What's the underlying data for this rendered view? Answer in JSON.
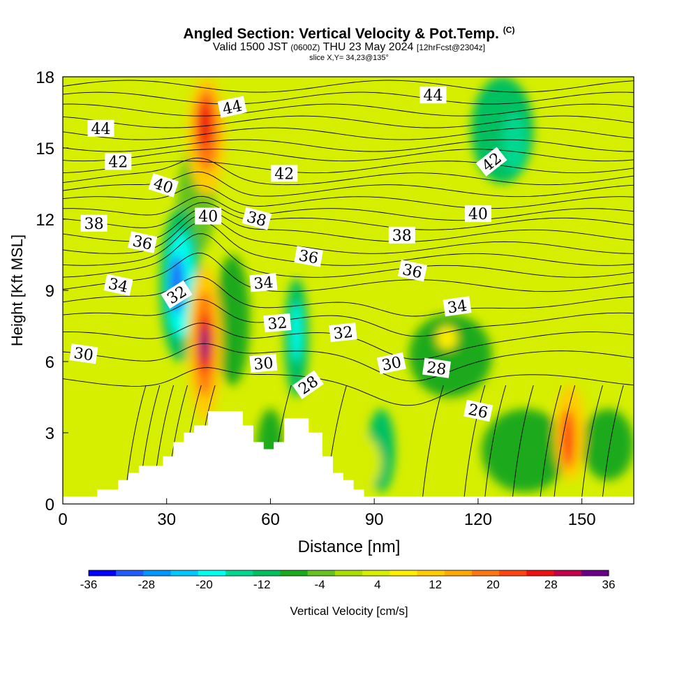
{
  "header": {
    "title": "Angled Section: Vertical Velocity & Pot.Temp.",
    "title_tag": "(C)",
    "subtitle_a": "Valid 1500 JST",
    "subtitle_b": "(0600Z)",
    "subtitle_c": "THU 23 May 2024",
    "subtitle_d": "[12hrFcst@2304z]",
    "slice": "slice X,Y= 34,23@135°"
  },
  "chart_data": {
    "type": "heatmap",
    "xlabel": "Distance [nm]",
    "ylabel": "Height [Kft MSL]",
    "xlim": [
      0,
      165
    ],
    "ylim": [
      0,
      18
    ],
    "x_ticks": [
      "0",
      "30",
      "60",
      "90",
      "120",
      "150"
    ],
    "x_tick_values": [
      0,
      30,
      60,
      90,
      120,
      150
    ],
    "y_ticks": [
      "0",
      "3",
      "6",
      "9",
      "12",
      "15",
      "18"
    ],
    "y_tick_values": [
      0,
      3,
      6,
      9,
      12,
      15,
      18
    ],
    "colorbar": {
      "label": "Vertical Velocity [cm/s]",
      "tick_labels": [
        "-36",
        "-28",
        "-20",
        "-12",
        "-4",
        "4",
        "12",
        "20",
        "28",
        "36"
      ],
      "levels": [
        -36,
        -32,
        -28,
        -24,
        -20,
        -16,
        -12,
        -8,
        -4,
        0,
        4,
        8,
        12,
        16,
        20,
        24,
        28,
        32,
        36
      ],
      "colors": [
        "#0000ff",
        "#1f5cff",
        "#0096ff",
        "#00c8ff",
        "#00ffee",
        "#00d890",
        "#00c060",
        "#1aaa1a",
        "#66c21e",
        "#aadd00",
        "#d6ee00",
        "#ffee00",
        "#ffcc00",
        "#ffaa00",
        "#ff7711",
        "#ff4411",
        "#ee1111",
        "#c4004c",
        "#6b0088"
      ]
    },
    "background_color": "#d6ee00",
    "velocity_cells": [
      {
        "x": [
          33,
          44
        ],
        "y": [
          10.5,
          15
        ],
        "value": -2
      },
      {
        "x": [
          28,
          40
        ],
        "y": [
          6,
          12.5
        ],
        "value": -10
      },
      {
        "x": [
          30,
          38
        ],
        "y": [
          7,
          11.5
        ],
        "value": -20
      },
      {
        "x": [
          31,
          35
        ],
        "y": [
          8,
          10.5
        ],
        "value": -30
      },
      {
        "x": [
          44,
          54
        ],
        "y": [
          5,
          10.5
        ],
        "value": -8
      },
      {
        "x": [
          64,
          71
        ],
        "y": [
          4.5,
          9.5
        ],
        "value": -10
      },
      {
        "x": [
          66,
          69
        ],
        "y": [
          6,
          8.5
        ],
        "value": -18
      },
      {
        "x": [
          118,
          136
        ],
        "y": [
          13.5,
          18
        ],
        "value": -10
      },
      {
        "x": [
          127,
          134
        ],
        "y": [
          14,
          16.5
        ],
        "value": -16
      },
      {
        "x": [
          100,
          124
        ],
        "y": [
          4.5,
          8
        ],
        "value": -6
      },
      {
        "x": [
          88,
          96
        ],
        "y": [
          0.5,
          4
        ],
        "value": -12
      },
      {
        "x": [
          121,
          146
        ],
        "y": [
          0.5,
          4
        ],
        "value": -6
      },
      {
        "x": [
          56,
          64
        ],
        "y": [
          0.5,
          4
        ],
        "value": -6
      },
      {
        "x": [
          150,
          165
        ],
        "y": [
          1,
          4
        ],
        "value": -6
      },
      {
        "x": [
          90,
          165
        ],
        "y": [
          8.5,
          12.5
        ],
        "value": 4
      },
      {
        "x": [
          122,
          165
        ],
        "y": [
          9,
          11.5
        ],
        "value": 6
      },
      {
        "x": [
          78,
          92
        ],
        "y": [
          0.5,
          3
        ],
        "value": 6
      },
      {
        "x": [
          36,
          47
        ],
        "y": [
          13,
          18
        ],
        "value": 12
      },
      {
        "x": [
          38,
          45
        ],
        "y": [
          14,
          17.5
        ],
        "value": 22
      },
      {
        "x": [
          39,
          43
        ],
        "y": [
          15,
          17
        ],
        "value": 30
      },
      {
        "x": [
          36,
          46
        ],
        "y": [
          3.5,
          10
        ],
        "value": 12
      },
      {
        "x": [
          38,
          44
        ],
        "y": [
          4.5,
          9
        ],
        "value": 22
      },
      {
        "x": [
          39,
          43
        ],
        "y": [
          5.5,
          8
        ],
        "value": 30
      },
      {
        "x": [
          40,
          42
        ],
        "y": [
          6,
          7.5
        ],
        "value": 36
      },
      {
        "x": [
          142,
          151
        ],
        "y": [
          1,
          5
        ],
        "value": 12
      },
      {
        "x": [
          144,
          148
        ],
        "y": [
          1.5,
          4
        ],
        "value": 24
      },
      {
        "x": [
          65,
          72
        ],
        "y": [
          0.5,
          3.5
        ],
        "value": 10
      },
      {
        "x": [
          108,
          114
        ],
        "y": [
          6.5,
          7.5
        ],
        "value": 10
      }
    ],
    "terrain": [
      [
        0,
        0.3
      ],
      [
        10,
        0.3
      ],
      [
        10,
        0.6
      ],
      [
        16,
        0.6
      ],
      [
        16,
        1
      ],
      [
        19,
        1
      ],
      [
        19,
        1.3
      ],
      [
        22,
        1.3
      ],
      [
        22,
        1.6
      ],
      [
        29,
        1.6
      ],
      [
        29,
        2
      ],
      [
        32,
        2
      ],
      [
        32,
        2.6
      ],
      [
        35,
        2.6
      ],
      [
        35,
        3
      ],
      [
        38,
        3
      ],
      [
        38,
        3.3
      ],
      [
        42,
        3.3
      ],
      [
        42,
        3.9
      ],
      [
        52,
        3.9
      ],
      [
        52,
        3.3
      ],
      [
        55,
        3.3
      ],
      [
        55,
        2.6
      ],
      [
        58,
        2.6
      ],
      [
        58,
        2.3
      ],
      [
        61,
        2.3
      ],
      [
        61,
        2.6
      ],
      [
        64,
        2.6
      ],
      [
        64,
        3.6
      ],
      [
        71,
        3.6
      ],
      [
        71,
        3
      ],
      [
        75,
        3
      ],
      [
        75,
        2
      ],
      [
        78,
        2
      ],
      [
        78,
        1.3
      ],
      [
        81,
        1.3
      ],
      [
        81,
        1
      ],
      [
        84,
        1
      ],
      [
        84,
        0.6
      ],
      [
        87,
        0.6
      ],
      [
        87,
        0.3
      ],
      [
        165,
        0.3
      ]
    ],
    "isentropes": [
      {
        "base": 17.6,
        "labels": []
      },
      {
        "base": 17.1,
        "labels": []
      },
      {
        "base": 16.6,
        "labels": [
          "44",
          "44",
          "44"
        ]
      },
      {
        "base": 16.1,
        "labels": []
      },
      {
        "base": 15.6,
        "labels": []
      },
      {
        "base": 15.1,
        "labels": []
      },
      {
        "base": 14.7,
        "labels": [
          "42",
          "42",
          "42"
        ]
      },
      {
        "base": 14.2,
        "labels": []
      },
      {
        "base": 13.7,
        "labels": []
      },
      {
        "base": 13.2,
        "labels": []
      },
      {
        "base": 12.7,
        "labels": [
          "40",
          "40",
          "40"
        ]
      },
      {
        "base": 12.2,
        "labels": []
      },
      {
        "base": 11.8,
        "labels": [
          "38",
          "38",
          "38"
        ]
      },
      {
        "base": 11.3,
        "labels": []
      },
      {
        "base": 10.8,
        "labels": [
          "36",
          "36",
          "36"
        ]
      },
      {
        "base": 10.3,
        "labels": []
      },
      {
        "base": 9.8,
        "labels": [
          "34",
          "34",
          "34"
        ]
      },
      {
        "base": 9.2,
        "labels": []
      },
      {
        "base": 8.5,
        "labels": [
          "32",
          "32",
          "32"
        ]
      },
      {
        "base": 7.8,
        "labels": []
      },
      {
        "base": 7.0,
        "labels": [
          "30",
          "30",
          "30"
        ]
      },
      {
        "base": 6.2,
        "labels": [
          "28",
          "28"
        ]
      },
      {
        "base": 5.2,
        "labels": [
          "26"
        ]
      }
    ],
    "contour_labels": [
      {
        "text": "44",
        "x": 11,
        "y": 15.8,
        "rotate": 0
      },
      {
        "text": "44",
        "x": 49,
        "y": 16.7,
        "rotate": -12
      },
      {
        "text": "44",
        "x": 107,
        "y": 17.2,
        "rotate": 0
      },
      {
        "text": "42",
        "x": 16,
        "y": 14.4,
        "rotate": 0
      },
      {
        "text": "42",
        "x": 64,
        "y": 13.9,
        "rotate": 0
      },
      {
        "text": "42",
        "x": 124,
        "y": 14.4,
        "rotate": -38
      },
      {
        "text": "40",
        "x": 29,
        "y": 13.4,
        "rotate": 18
      },
      {
        "text": "40",
        "x": 42,
        "y": 12.1,
        "rotate": 0
      },
      {
        "text": "40",
        "x": 120,
        "y": 12.2,
        "rotate": 0
      },
      {
        "text": "38",
        "x": 9,
        "y": 11.8,
        "rotate": 0
      },
      {
        "text": "38",
        "x": 56,
        "y": 12,
        "rotate": 15
      },
      {
        "text": "38",
        "x": 98,
        "y": 11.3,
        "rotate": 0
      },
      {
        "text": "36",
        "x": 23,
        "y": 11,
        "rotate": 12
      },
      {
        "text": "36",
        "x": 71,
        "y": 10.4,
        "rotate": 10
      },
      {
        "text": "36",
        "x": 101,
        "y": 9.8,
        "rotate": 12
      },
      {
        "text": "34",
        "x": 16,
        "y": 9.2,
        "rotate": 12
      },
      {
        "text": "34",
        "x": 58,
        "y": 9.3,
        "rotate": -5
      },
      {
        "text": "34",
        "x": 114,
        "y": 8.3,
        "rotate": -8
      },
      {
        "text": "32",
        "x": 33,
        "y": 8.8,
        "rotate": -32
      },
      {
        "text": "32",
        "x": 62,
        "y": 7.6,
        "rotate": -5
      },
      {
        "text": "32",
        "x": 81,
        "y": 7.2,
        "rotate": -6
      },
      {
        "text": "30",
        "x": 6,
        "y": 6.3,
        "rotate": 8
      },
      {
        "text": "30",
        "x": 58,
        "y": 5.9,
        "rotate": -5
      },
      {
        "text": "30",
        "x": 95,
        "y": 5.9,
        "rotate": -12
      },
      {
        "text": "28",
        "x": 71,
        "y": 5,
        "rotate": -35
      },
      {
        "text": "28",
        "x": 108,
        "y": 5.7,
        "rotate": 8
      },
      {
        "text": "26",
        "x": 120,
        "y": 3.9,
        "rotate": 12
      }
    ]
  }
}
